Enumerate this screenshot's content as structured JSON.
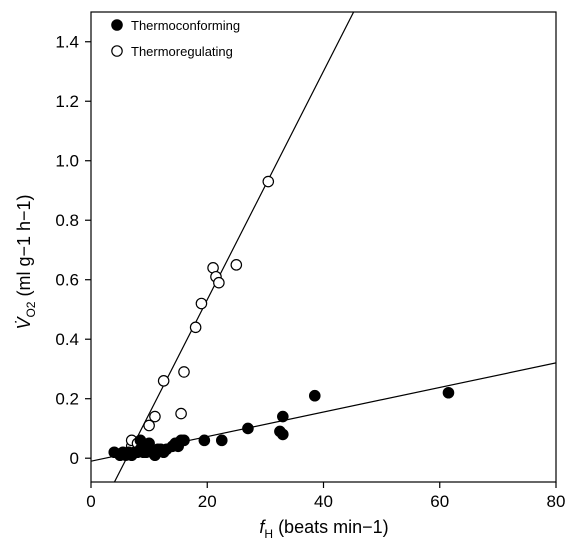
{
  "chart_data": {
    "type": "scatter",
    "xlabel_italic": "f",
    "xlabel_sub": "H",
    "xlabel_rest": " (beats min−1)",
    "ylabel_italic": "V̇",
    "ylabel_sub": "O2",
    "ylabel_rest": " (ml g−1 h−1)",
    "xlim": [
      0,
      80
    ],
    "ylim": [
      -0.08,
      1.5
    ],
    "xticks": [
      "0",
      "20",
      "40",
      "60",
      "80"
    ],
    "yticks": [
      "0",
      "0.2",
      "0.4",
      "0.6",
      "0.8",
      "1.0",
      "1.2",
      "1.4"
    ],
    "legend_position": "top-left",
    "grid": false,
    "series": [
      {
        "name": "Thermoconforming",
        "marker": "filled-circle",
        "color": "#000000",
        "points": [
          [
            4.0,
            0.02
          ],
          [
            5.0,
            0.01
          ],
          [
            5.5,
            0.02
          ],
          [
            6.0,
            0.01
          ],
          [
            6.5,
            0.02
          ],
          [
            7.0,
            0.01
          ],
          [
            7.5,
            0.02
          ],
          [
            8.0,
            0.02
          ],
          [
            8.5,
            0.03
          ],
          [
            9.0,
            0.02
          ],
          [
            9.5,
            0.02
          ],
          [
            10.0,
            0.03
          ],
          [
            10.5,
            0.02
          ],
          [
            11.0,
            0.01
          ],
          [
            11.5,
            0.03
          ],
          [
            12.0,
            0.03
          ],
          [
            13.0,
            0.03
          ],
          [
            14.0,
            0.04
          ],
          [
            14.5,
            0.05
          ],
          [
            15.0,
            0.04
          ],
          [
            15.5,
            0.06
          ],
          [
            16.0,
            0.06
          ],
          [
            8.5,
            0.06
          ],
          [
            9.0,
            0.04
          ],
          [
            10.0,
            0.05
          ],
          [
            11.0,
            0.02
          ],
          [
            12.5,
            0.02
          ],
          [
            19.5,
            0.06
          ],
          [
            22.5,
            0.06
          ],
          [
            27.0,
            0.1
          ],
          [
            32.5,
            0.09
          ],
          [
            33.0,
            0.14
          ],
          [
            33.0,
            0.08
          ],
          [
            38.5,
            0.21
          ],
          [
            61.5,
            0.22
          ]
        ]
      },
      {
        "name": "Thermoregulating",
        "marker": "open-circle",
        "color": "#000000",
        "points": [
          [
            7.0,
            0.04
          ],
          [
            7.0,
            0.06
          ],
          [
            8.0,
            0.05
          ],
          [
            10.0,
            0.11
          ],
          [
            11.0,
            0.14
          ],
          [
            12.5,
            0.26
          ],
          [
            15.5,
            0.15
          ],
          [
            16.0,
            0.29
          ],
          [
            18.0,
            0.44
          ],
          [
            19.0,
            0.52
          ],
          [
            21.0,
            0.64
          ],
          [
            21.5,
            0.61
          ],
          [
            22.0,
            0.59
          ],
          [
            25.0,
            0.65
          ],
          [
            30.5,
            0.93
          ]
        ]
      }
    ],
    "fit_lines": [
      {
        "series": "Thermoconforming",
        "slope": 0.00413,
        "intercept": -0.01
      },
      {
        "series": "Thermoregulating",
        "slope": 0.0384,
        "intercept": -0.235
      }
    ]
  }
}
